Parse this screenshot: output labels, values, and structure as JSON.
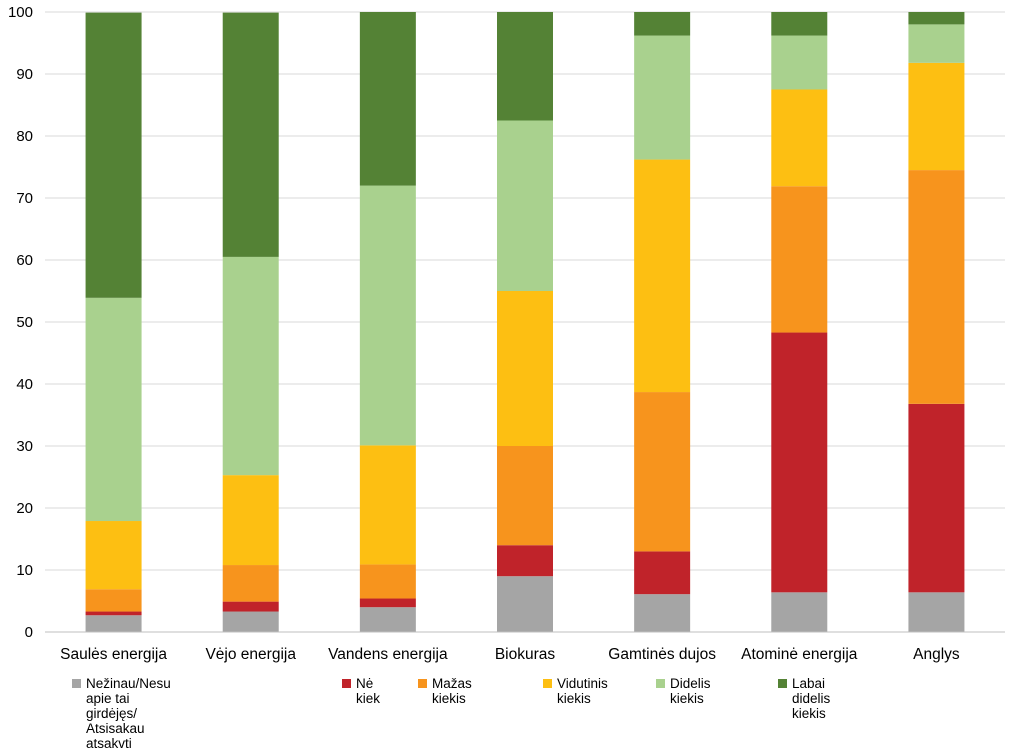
{
  "chart_data": {
    "type": "bar",
    "stacked": true,
    "categories": [
      "Saulės energija",
      "Vėjo energija",
      "Vandens energija",
      "Biokuras",
      "Gamtinės dujos",
      "Atominė energija",
      "Anglys"
    ],
    "series": [
      {
        "name": "Nežinau/Nesu apie tai girdėjęs/\nAtsisakau atsakvti",
        "color": "#a5a5a5",
        "values": [
          2.7,
          3.3,
          4.0,
          9.0,
          6.1,
          6.4,
          6.4
        ]
      },
      {
        "name": "Nė kiek",
        "color": "#c0232a",
        "values": [
          0.6,
          1.6,
          1.4,
          5.0,
          6.9,
          41.9,
          30.4
        ]
      },
      {
        "name": "Mažas kiekis",
        "color": "#f7941d",
        "values": [
          3.6,
          5.9,
          5.5,
          16.0,
          25.7,
          23.6,
          37.7
        ]
      },
      {
        "name": "Vidutinis kiekis",
        "color": "#fdbf12",
        "values": [
          11.0,
          14.5,
          19.2,
          25.0,
          37.5,
          15.6,
          17.3
        ]
      },
      {
        "name": "Didelis kiekis",
        "color": "#a9d18e",
        "values": [
          36.0,
          35.2,
          41.9,
          27.5,
          20.0,
          8.7,
          6.2
        ]
      },
      {
        "name": "Labai didelis kiekis",
        "color": "#548235",
        "values": [
          46.0,
          39.4,
          28.0,
          17.5,
          3.8,
          3.8,
          2.0
        ]
      }
    ],
    "title": "",
    "xlabel": "",
    "ylabel": "",
    "ylim": [
      0,
      100
    ],
    "yticks": [
      "0",
      "10",
      "20",
      "30",
      "40",
      "50",
      "60",
      "70",
      "80",
      "90",
      "100"
    ],
    "grid": true,
    "legend_position": "bottom",
    "gridline_color": "#d9d9d9",
    "axis_color": "#bfbfbf"
  }
}
